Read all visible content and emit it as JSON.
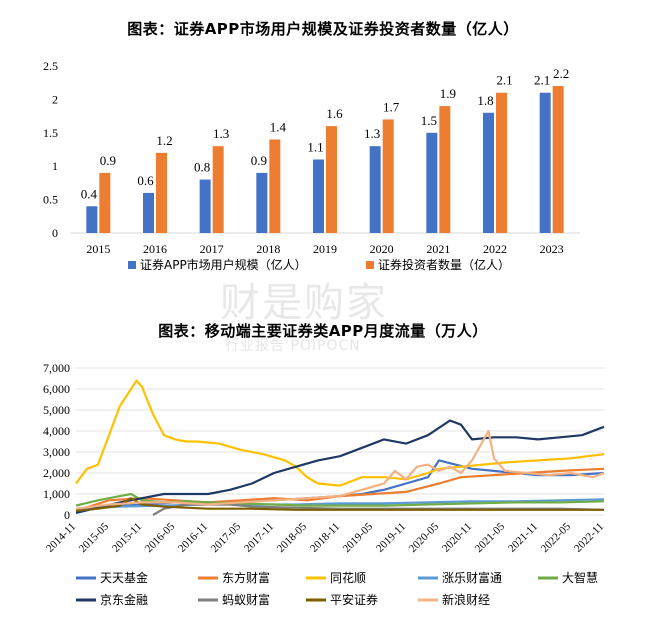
{
  "colors": {
    "blue": "#4472c4",
    "orange": "#ed7d31"
  },
  "watermark": {
    "main": "财是购家",
    "sub": "行业报告 POIPOCN"
  },
  "chart_data": [
    {
      "type": "bar",
      "title": "图表：证券APP市场用户规模及证券投资者数量（亿人）",
      "categories": [
        "2015",
        "2016",
        "2017",
        "2018",
        "2019",
        "2020",
        "2021",
        "2022",
        "2023"
      ],
      "series": [
        {
          "name": "证券APP市场用户规模（亿人）",
          "color": "#4472c4",
          "values": [
            0.4,
            0.6,
            0.8,
            0.9,
            1.1,
            1.3,
            1.5,
            1.8,
            2.1
          ]
        },
        {
          "name": "证券投资者数量（亿人）",
          "color": "#ed7d31",
          "values": [
            0.9,
            1.2,
            1.3,
            1.4,
            1.6,
            1.7,
            1.9,
            2.1,
            2.2
          ]
        }
      ],
      "ylim": [
        0,
        2.5
      ],
      "yticks": [
        "0",
        "0.5",
        "1",
        "1.5",
        "2",
        "2.5"
      ],
      "legend": "bottom",
      "grid": false
    },
    {
      "type": "line",
      "title": "图表：移动端主要证券类APP月度流量（万人）",
      "ylim": [
        0,
        7000
      ],
      "yticks": [
        "0",
        "1,000",
        "2,000",
        "3,000",
        "4,000",
        "5,000",
        "6,000",
        "7,000"
      ],
      "xticks": [
        "2014-11",
        "2015-05",
        "2015-11",
        "2016-05",
        "2016-11",
        "2017-05",
        "2017-11",
        "2018-05",
        "2018-11",
        "2019-05",
        "2019-11",
        "2020-05",
        "2020-11",
        "2021-05",
        "2021-11",
        "2022-05",
        "2022-11"
      ],
      "x_start": "2014-11",
      "legend": "bottom",
      "grid": true,
      "series": [
        {
          "name": "天天基金",
          "color": "#4472c4",
          "points": [
            [
              0,
              300
            ],
            [
              6,
              400
            ],
            [
              12,
              500
            ],
            [
              18,
              600
            ],
            [
              24,
              600
            ],
            [
              30,
              650
            ],
            [
              36,
              700
            ],
            [
              42,
              800
            ],
            [
              48,
              900
            ],
            [
              52,
              1000
            ],
            [
              56,
              1200
            ],
            [
              60,
              1500
            ],
            [
              64,
              1800
            ],
            [
              66,
              2600
            ],
            [
              69,
              2400
            ],
            [
              72,
              2200
            ],
            [
              76,
              2100
            ],
            [
              80,
              2000
            ],
            [
              84,
              1900
            ],
            [
              90,
              1900
            ],
            [
              96,
              2000
            ]
          ]
        },
        {
          "name": "东方财富",
          "color": "#ed7d31",
          "points": [
            [
              0,
              200
            ],
            [
              6,
              700
            ],
            [
              12,
              800
            ],
            [
              18,
              700
            ],
            [
              24,
              600
            ],
            [
              30,
              700
            ],
            [
              36,
              800
            ],
            [
              42,
              700
            ],
            [
              48,
              900
            ],
            [
              54,
              1000
            ],
            [
              60,
              1100
            ],
            [
              63,
              1300
            ],
            [
              66,
              1500
            ],
            [
              70,
              1800
            ],
            [
              76,
              1900
            ],
            [
              82,
              2000
            ],
            [
              88,
              2100
            ],
            [
              96,
              2200
            ]
          ]
        },
        {
          "name": "同花顺",
          "color": "#ffc000",
          "points": [
            [
              0,
              1500
            ],
            [
              2,
              2200
            ],
            [
              4,
              2400
            ],
            [
              6,
              3800
            ],
            [
              8,
              5200
            ],
            [
              10,
              6000
            ],
            [
              11,
              6400
            ],
            [
              12,
              6100
            ],
            [
              14,
              4800
            ],
            [
              16,
              3800
            ],
            [
              18,
              3600
            ],
            [
              20,
              3500
            ],
            [
              22,
              3500
            ],
            [
              26,
              3400
            ],
            [
              30,
              3100
            ],
            [
              34,
              2900
            ],
            [
              38,
              2600
            ],
            [
              40,
              2300
            ],
            [
              42,
              1800
            ],
            [
              44,
              1500
            ],
            [
              48,
              1400
            ],
            [
              52,
              1800
            ],
            [
              56,
              1800
            ],
            [
              60,
              1700
            ],
            [
              64,
              2000
            ],
            [
              66,
              2200
            ],
            [
              70,
              2300
            ],
            [
              74,
              2400
            ],
            [
              78,
              2500
            ],
            [
              84,
              2600
            ],
            [
              90,
              2700
            ],
            [
              96,
              2900
            ]
          ]
        },
        {
          "name": "涨乐财富通",
          "color": "#5b9bd5",
          "points": [
            [
              0,
              300
            ],
            [
              8,
              400
            ],
            [
              16,
              450
            ],
            [
              24,
              500
            ],
            [
              32,
              500
            ],
            [
              40,
              500
            ],
            [
              48,
              550
            ],
            [
              56,
              550
            ],
            [
              64,
              600
            ],
            [
              72,
              650
            ],
            [
              80,
              650
            ],
            [
              88,
              700
            ],
            [
              96,
              750
            ]
          ]
        },
        {
          "name": "大智慧",
          "color": "#70ad47",
          "points": [
            [
              0,
              450
            ],
            [
              4,
              700
            ],
            [
              8,
              900
            ],
            [
              10,
              1000
            ],
            [
              12,
              700
            ],
            [
              16,
              600
            ],
            [
              20,
              650
            ],
            [
              24,
              600
            ],
            [
              30,
              550
            ],
            [
              36,
              500
            ],
            [
              42,
              450
            ],
            [
              48,
              450
            ],
            [
              56,
              450
            ],
            [
              64,
              500
            ],
            [
              72,
              550
            ],
            [
              80,
              600
            ],
            [
              88,
              600
            ],
            [
              96,
              650
            ]
          ]
        },
        {
          "name": "京东金融",
          "color": "#203864",
          "points": [
            [
              0,
              100
            ],
            [
              8,
              600
            ],
            [
              12,
              800
            ],
            [
              16,
              1000
            ],
            [
              20,
              1000
            ],
            [
              24,
              1000
            ],
            [
              28,
              1200
            ],
            [
              32,
              1500
            ],
            [
              36,
              2000
            ],
            [
              40,
              2300
            ],
            [
              44,
              2600
            ],
            [
              48,
              2800
            ],
            [
              52,
              3200
            ],
            [
              56,
              3600
            ],
            [
              60,
              3400
            ],
            [
              64,
              3800
            ],
            [
              68,
              4500
            ],
            [
              70,
              4300
            ],
            [
              72,
              3600
            ],
            [
              76,
              3700
            ],
            [
              80,
              3700
            ],
            [
              84,
              3600
            ],
            [
              88,
              3700
            ],
            [
              92,
              3800
            ],
            [
              96,
              4200
            ]
          ]
        },
        {
          "name": "蚂蚁财富",
          "color": "#7f7f7f",
          "points": [
            [
              14,
              0
            ],
            [
              16,
              300
            ],
            [
              20,
              500
            ],
            [
              24,
              500
            ],
            [
              28,
              500
            ],
            [
              32,
              400
            ],
            [
              40,
              350
            ],
            [
              48,
              300
            ],
            [
              56,
              300
            ],
            [
              64,
              300
            ],
            [
              72,
              300
            ],
            [
              80,
              300
            ],
            [
              88,
              300
            ],
            [
              96,
              250
            ]
          ]
        },
        {
          "name": "平安证券",
          "color": "#7f6000",
          "points": [
            [
              0,
              200
            ],
            [
              4,
              300
            ],
            [
              8,
              450
            ],
            [
              10,
              800
            ],
            [
              12,
              500
            ],
            [
              16,
              400
            ],
            [
              20,
              350
            ],
            [
              24,
              300
            ],
            [
              32,
              300
            ],
            [
              40,
              250
            ],
            [
              48,
              250
            ],
            [
              56,
              250
            ],
            [
              64,
              250
            ],
            [
              72,
              250
            ],
            [
              80,
              250
            ],
            [
              88,
              250
            ],
            [
              96,
              250
            ]
          ]
        },
        {
          "name": "新浪财经",
          "color": "#f4b183",
          "points": [
            [
              0,
              300
            ],
            [
              6,
              500
            ],
            [
              12,
              600
            ],
            [
              18,
              600
            ],
            [
              24,
              500
            ],
            [
              30,
              600
            ],
            [
              36,
              700
            ],
            [
              42,
              800
            ],
            [
              48,
              900
            ],
            [
              52,
              1200
            ],
            [
              56,
              1500
            ],
            [
              58,
              2100
            ],
            [
              60,
              1700
            ],
            [
              62,
              2300
            ],
            [
              64,
              2400
            ],
            [
              66,
              2100
            ],
            [
              68,
              2300
            ],
            [
              70,
              2000
            ],
            [
              72,
              2600
            ],
            [
              75,
              4000
            ],
            [
              76,
              2700
            ],
            [
              78,
              2100
            ],
            [
              82,
              2000
            ],
            [
              86,
              1900
            ],
            [
              90,
              2000
            ],
            [
              94,
              1800
            ],
            [
              96,
              2000
            ]
          ]
        }
      ]
    }
  ]
}
